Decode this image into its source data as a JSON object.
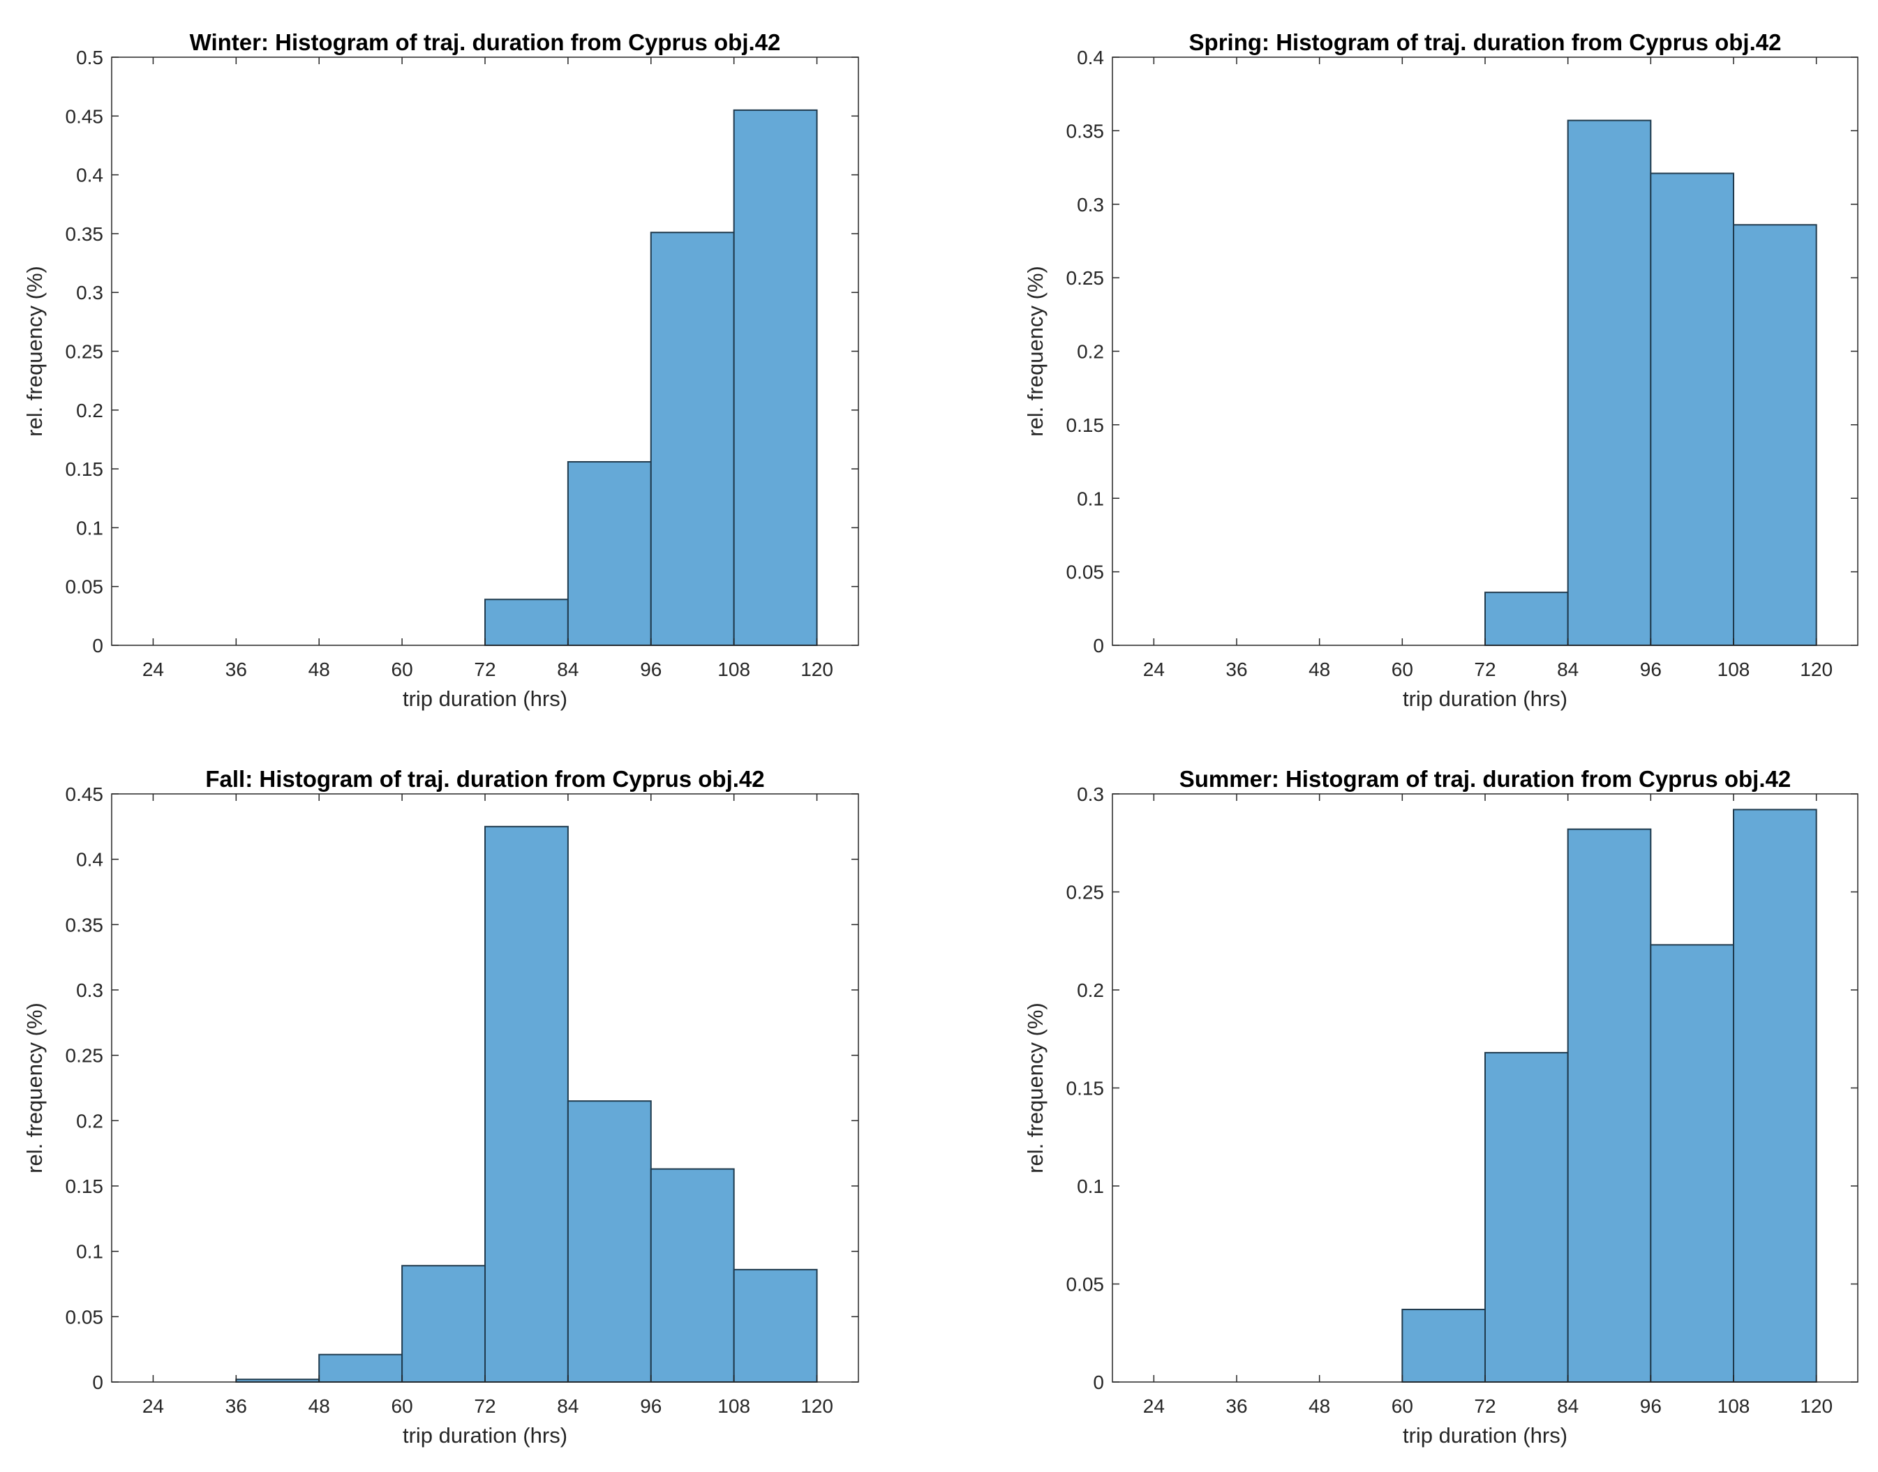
{
  "colors": {
    "bar": "#65a9d7",
    "axis": "#262626",
    "bar_edge": "#1f3a4d"
  },
  "chart_data": [
    {
      "type": "bar",
      "title": "Winter: Histogram of traj. duration from Cyprus obj.42",
      "xlabel": "trip duration (hrs)",
      "ylabel": "rel. frequency (%)",
      "xlim": [
        18,
        126
      ],
      "ylim": [
        0,
        0.5
      ],
      "xticks": [
        24,
        36,
        48,
        60,
        72,
        84,
        96,
        108,
        120
      ],
      "yticks": [
        0,
        0.05,
        0.1,
        0.15,
        0.2,
        0.25,
        0.3,
        0.35,
        0.4,
        0.45,
        0.5
      ],
      "bins": [
        [
          72,
          84
        ],
        [
          84,
          96
        ],
        [
          96,
          108
        ],
        [
          108,
          120
        ]
      ],
      "values": [
        0.039,
        0.156,
        0.351,
        0.455
      ]
    },
    {
      "type": "bar",
      "title": "Spring: Histogram of traj. duration from Cyprus obj.42",
      "xlabel": "trip duration (hrs)",
      "ylabel": "rel. frequency (%)",
      "xlim": [
        18,
        126
      ],
      "ylim": [
        0,
        0.4
      ],
      "xticks": [
        24,
        36,
        48,
        60,
        72,
        84,
        96,
        108,
        120
      ],
      "yticks": [
        0,
        0.05,
        0.1,
        0.15,
        0.2,
        0.25,
        0.3,
        0.35,
        0.4
      ],
      "bins": [
        [
          72,
          84
        ],
        [
          84,
          96
        ],
        [
          96,
          108
        ],
        [
          108,
          120
        ]
      ],
      "values": [
        0.036,
        0.357,
        0.321,
        0.286
      ]
    },
    {
      "type": "bar",
      "title": "Fall: Histogram of traj. duration from Cyprus obj.42",
      "xlabel": "trip duration (hrs)",
      "ylabel": "rel. frequency (%)",
      "xlim": [
        18,
        126
      ],
      "ylim": [
        0,
        0.45
      ],
      "xticks": [
        24,
        36,
        48,
        60,
        72,
        84,
        96,
        108,
        120
      ],
      "yticks": [
        0,
        0.05,
        0.1,
        0.15,
        0.2,
        0.25,
        0.3,
        0.35,
        0.4,
        0.45
      ],
      "bins": [
        [
          36,
          48
        ],
        [
          48,
          60
        ],
        [
          60,
          72
        ],
        [
          72,
          84
        ],
        [
          84,
          96
        ],
        [
          96,
          108
        ],
        [
          108,
          120
        ]
      ],
      "values": [
        0.002,
        0.021,
        0.089,
        0.425,
        0.215,
        0.163,
        0.086
      ]
    },
    {
      "type": "bar",
      "title": "Summer: Histogram of traj. duration from Cyprus obj.42",
      "xlabel": "trip duration (hrs)",
      "ylabel": "rel. frequency (%)",
      "xlim": [
        18,
        126
      ],
      "ylim": [
        0,
        0.3
      ],
      "xticks": [
        24,
        36,
        48,
        60,
        72,
        84,
        96,
        108,
        120
      ],
      "yticks": [
        0,
        0.05,
        0.1,
        0.15,
        0.2,
        0.25,
        0.3
      ],
      "bins": [
        [
          60,
          72
        ],
        [
          72,
          84
        ],
        [
          84,
          96
        ],
        [
          96,
          108
        ],
        [
          108,
          120
        ]
      ],
      "values": [
        0.037,
        0.168,
        0.282,
        0.223,
        0.292
      ]
    }
  ]
}
